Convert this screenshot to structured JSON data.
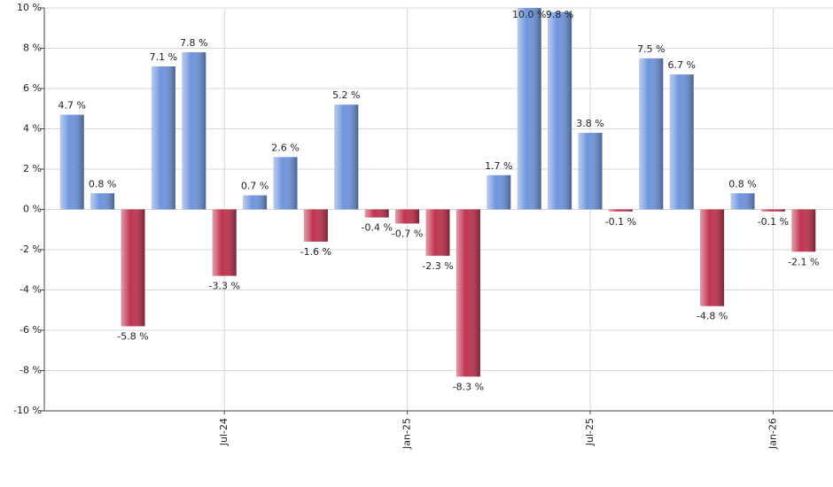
{
  "chart_data": {
    "type": "bar",
    "categories": [
      null,
      null,
      null,
      null,
      null,
      "Jul-24",
      null,
      null,
      null,
      null,
      null,
      "Jan-25",
      null,
      null,
      null,
      null,
      null,
      "Jul-25",
      null,
      null,
      null,
      null,
      null,
      "Jan-26",
      null
    ],
    "values": [
      4.7,
      0.8,
      -5.8,
      7.1,
      7.8,
      -3.3,
      0.7,
      2.6,
      -1.6,
      5.2,
      -0.4,
      -0.7,
      -2.3,
      -8.3,
      1.7,
      10.0,
      9.8,
      3.8,
      -0.1,
      7.5,
      6.7,
      -4.8,
      0.8,
      -0.1,
      -2.1
    ],
    "value_labels": [
      "4.7 %",
      "0.8 %",
      "-5.8 %",
      "7.1 %",
      "7.8 %",
      "-3.3 %",
      "0.7 %",
      "2.6 %",
      "-1.6 %",
      "5.2 %",
      "-0.4 %",
      "-0.7 %",
      "-2.3 %",
      "-8.3 %",
      "1.7 %",
      "10.0 %",
      "9.8 %",
      "3.8 %",
      "-0.1 %",
      "7.5 %",
      "6.7 %",
      "-4.8 %",
      "0.8 %",
      "-0.1 %",
      "-2.1 %"
    ],
    "positive_color": "#6f95dd",
    "negative_color": "#c0334f",
    "ylim": [
      -10,
      10
    ],
    "yticks": [
      {
        "value": -10,
        "label": "-10 %"
      },
      {
        "value": -8,
        "label": "-8 %"
      },
      {
        "value": -6,
        "label": "-6 %"
      },
      {
        "value": -4,
        "label": "-4 %"
      },
      {
        "value": -2,
        "label": "-2 %"
      },
      {
        "value": 0,
        "label": "0 %"
      },
      {
        "value": 2,
        "label": "2 %"
      },
      {
        "value": 4,
        "label": "4 %"
      },
      {
        "value": 6,
        "label": "6 %"
      },
      {
        "value": 8,
        "label": "8 %"
      },
      {
        "value": 10,
        "label": "10 %"
      }
    ],
    "grid": true
  }
}
